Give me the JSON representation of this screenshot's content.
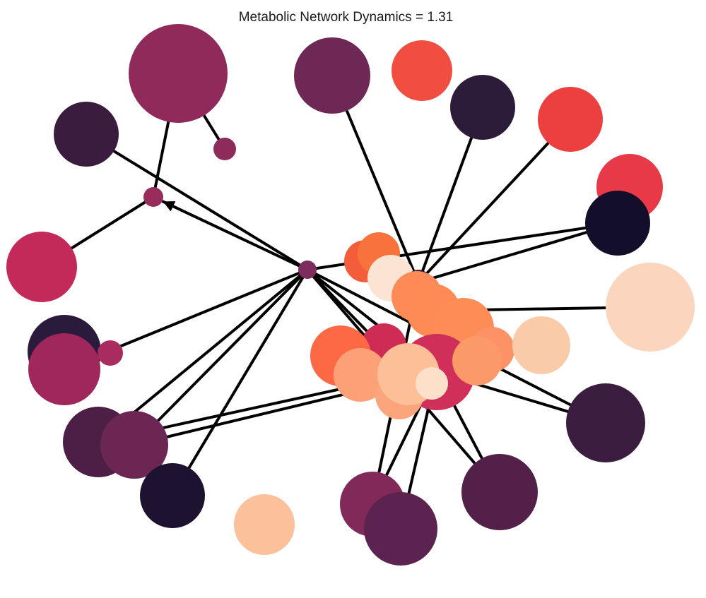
{
  "title": "Metabolic Network Dynamics  = 1.31",
  "nodes": [
    {
      "id": "n01",
      "color": "#8f2a5a"
    },
    {
      "id": "n02",
      "color": "#6e2856"
    },
    {
      "id": "n03",
      "color": "#f24d41"
    },
    {
      "id": "n04",
      "color": "#2d1b3a"
    },
    {
      "id": "n05",
      "color": "#ec4040"
    },
    {
      "id": "n06",
      "color": "#3a1c3f"
    },
    {
      "id": "n07",
      "color": "#8d2b5b"
    },
    {
      "id": "n08",
      "color": "#972d5a"
    },
    {
      "id": "n09",
      "color": "#e83948"
    },
    {
      "id": "n10",
      "color": "#130e29"
    },
    {
      "id": "n11",
      "color": "#c32a5a"
    },
    {
      "id": "n12",
      "color": "#fbd5bd"
    },
    {
      "id": "n13",
      "color": "#2a1a3c"
    },
    {
      "id": "n14",
      "color": "#7c2d5c"
    },
    {
      "id": "n15",
      "color": "#a0275c"
    },
    {
      "id": "n16",
      "color": "#a82d5e"
    },
    {
      "id": "n17",
      "color": "#3b1d40"
    },
    {
      "id": "n18",
      "color": "#4e1f46"
    },
    {
      "id": "n19",
      "color": "#6b2654"
    },
    {
      "id": "n20",
      "color": "#1d1230"
    },
    {
      "id": "n21",
      "color": "#fcc09a"
    },
    {
      "id": "n22",
      "color": "#53204a"
    },
    {
      "id": "n23",
      "color": "#812a5a"
    },
    {
      "id": "n24",
      "color": "#5c2250"
    },
    {
      "id": "n25",
      "color": "#f45d3c"
    },
    {
      "id": "n26",
      "color": "#f8723c"
    },
    {
      "id": "n27",
      "color": "#fce4d4"
    },
    {
      "id": "n28",
      "color": "#2b1a3b"
    },
    {
      "id": "n29",
      "color": "#fd8a57"
    },
    {
      "id": "n30",
      "color": "#fe8a55"
    },
    {
      "id": "n31",
      "color": "#fd8c56"
    },
    {
      "id": "n32",
      "color": "#cf2c55"
    },
    {
      "id": "n33",
      "color": "#cf2f58"
    },
    {
      "id": "n34",
      "color": "#fd9266"
    },
    {
      "id": "n35",
      "color": "#f9cba8"
    },
    {
      "id": "n36",
      "color": "#fd6945"
    },
    {
      "id": "n37",
      "color": "#fca077"
    },
    {
      "id": "n38",
      "color": "#fca47c"
    },
    {
      "id": "n39",
      "color": "#fcbf98"
    },
    {
      "id": "n40",
      "color": "#fde0ca"
    },
    {
      "id": "n41",
      "color": "#fb9a68"
    }
  ],
  "edges": [
    [
      "n04",
      "n28"
    ],
    [
      "n05",
      "n28"
    ],
    [
      "n10",
      "n28"
    ],
    [
      "n02",
      "n28"
    ],
    [
      "n12",
      "n30"
    ],
    [
      "n06",
      "n14"
    ],
    [
      "n01",
      "n08"
    ],
    [
      "n01",
      "n07"
    ],
    [
      "n08",
      "n11"
    ],
    [
      "n14",
      "n08"
    ],
    [
      "n14",
      "n15"
    ],
    [
      "n14",
      "n20"
    ],
    [
      "n14",
      "n17"
    ],
    [
      "n14",
      "n18"
    ],
    [
      "n14",
      "n22"
    ],
    [
      "n14",
      "n19"
    ],
    [
      "n14",
      "n10"
    ],
    [
      "n14",
      "n33"
    ],
    [
      "n14",
      "n39"
    ],
    [
      "n19",
      "n33"
    ],
    [
      "n18",
      "n39"
    ],
    [
      "n33",
      "n23"
    ],
    [
      "n33",
      "n22"
    ],
    [
      "n33",
      "n24"
    ],
    [
      "n33",
      "n17"
    ],
    [
      "n28",
      "n23"
    ]
  ]
}
